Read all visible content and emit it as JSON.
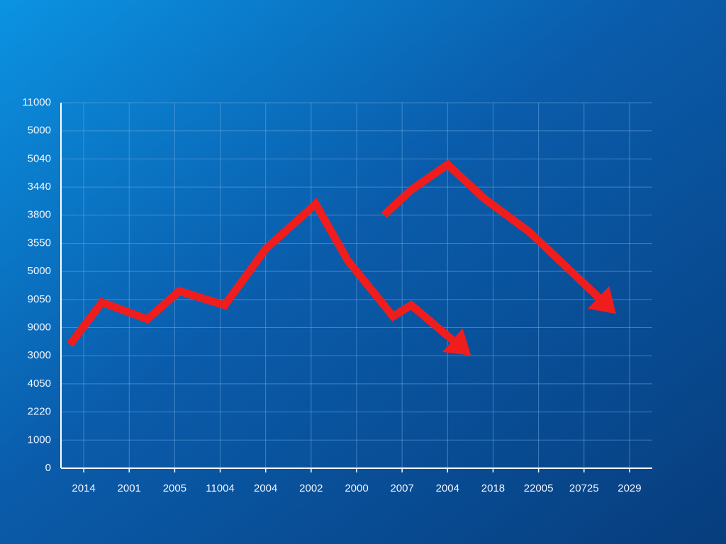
{
  "chart_data": {
    "type": "line",
    "xlim": [
      0,
      13
    ],
    "ylim": [
      0,
      13
    ],
    "xticks": [
      {
        "value": 0.5,
        "label": "2014"
      },
      {
        "value": 1.5,
        "label": "2001"
      },
      {
        "value": 2.5,
        "label": "2005"
      },
      {
        "value": 3.5,
        "label": "11004"
      },
      {
        "value": 4.5,
        "label": "2004"
      },
      {
        "value": 5.5,
        "label": "2002"
      },
      {
        "value": 6.5,
        "label": "2000"
      },
      {
        "value": 7.5,
        "label": "2007"
      },
      {
        "value": 8.5,
        "label": "2004"
      },
      {
        "value": 9.5,
        "label": "2018"
      },
      {
        "value": 10.5,
        "label": "22005"
      },
      {
        "value": 11.5,
        "label": "20725"
      },
      {
        "value": 12.5,
        "label": "2029"
      }
    ],
    "yticks": [
      0,
      {
        "value": 1,
        "label": "1000"
      },
      {
        "value": 2,
        "label": "2220"
      },
      {
        "value": 3,
        "label": "4050"
      },
      {
        "value": 4,
        "label": "3000"
      },
      {
        "value": 5,
        "label": "9000"
      },
      {
        "value": 6,
        "label": "9050"
      },
      {
        "value": 7,
        "label": "5000"
      },
      {
        "value": 8,
        "label": "3550"
      },
      {
        "value": 9,
        "label": "3800"
      },
      {
        "value": 10,
        "label": "3440"
      },
      {
        "value": 11,
        "label": "5040"
      },
      {
        "value": 12,
        "label": "5000"
      },
      {
        "value": 13,
        "label": "11000"
      }
    ],
    "grid": true,
    "series": [
      {
        "color": "#f01d1d",
        "x": [
          0.2,
          0.9,
          1.9,
          2.6,
          3.6,
          4.5,
          5.6,
          6.3,
          7.3,
          7.7,
          8.8
        ],
        "values": [
          4.4,
          5.9,
          5.3,
          6.3,
          5.8,
          7.8,
          9.4,
          7.4,
          5.4,
          5.8,
          4.3
        ]
      },
      {
        "color": "#f01d1d",
        "x": [
          7.1,
          7.7,
          8.5,
          9.3,
          10.3,
          12.0
        ],
        "values": [
          9.0,
          9.9,
          10.8,
          9.6,
          8.4,
          5.8
        ]
      }
    ]
  }
}
